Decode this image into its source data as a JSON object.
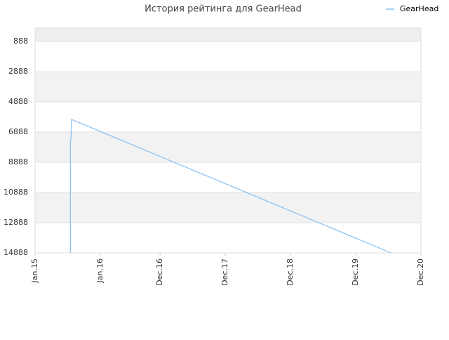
{
  "chart_data": {
    "type": "line",
    "title": "История рейтинга для GearHead",
    "x": [
      6.5,
      6.5,
      6.6,
      6.7,
      65.5
    ],
    "series": [
      {
        "name": "GearHead",
        "color": "#88c0f0",
        "values": [
          14888,
          7442,
          7442,
          6047,
          14888
        ]
      }
    ],
    "xlim": [
      0,
      71
    ],
    "xticks": [
      {
        "value": 0,
        "label": "Jan.15"
      },
      {
        "value": 12,
        "label": "Jan.16"
      },
      {
        "value": 23,
        "label": "Dec.16"
      },
      {
        "value": 35,
        "label": "Dec.17"
      },
      {
        "value": 47,
        "label": "Dec.18"
      },
      {
        "value": 59,
        "label": "Dec.19"
      },
      {
        "value": 71,
        "label": "Dec.20"
      }
    ],
    "ylim": [
      14888,
      0
    ],
    "yticks": [
      888,
      2888,
      4888,
      6888,
      8888,
      10888,
      12888,
      14888
    ],
    "grid": true,
    "legend": "top-right"
  }
}
